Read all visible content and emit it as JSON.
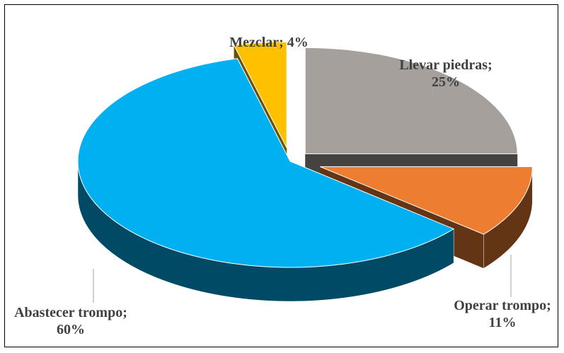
{
  "chart_data": {
    "type": "pie",
    "categories": [
      "Llevar piedras",
      "Operar trompo",
      "Abastecer trompo",
      "Mezclar"
    ],
    "values": [
      25,
      11,
      60,
      4
    ],
    "value_labels": [
      "; 25%",
      "; 11%",
      "; 60%",
      "; 4%"
    ],
    "colors": [
      "#a5a09c",
      "#ed7d31",
      "#00b0f0",
      "#ffc000"
    ]
  }
}
